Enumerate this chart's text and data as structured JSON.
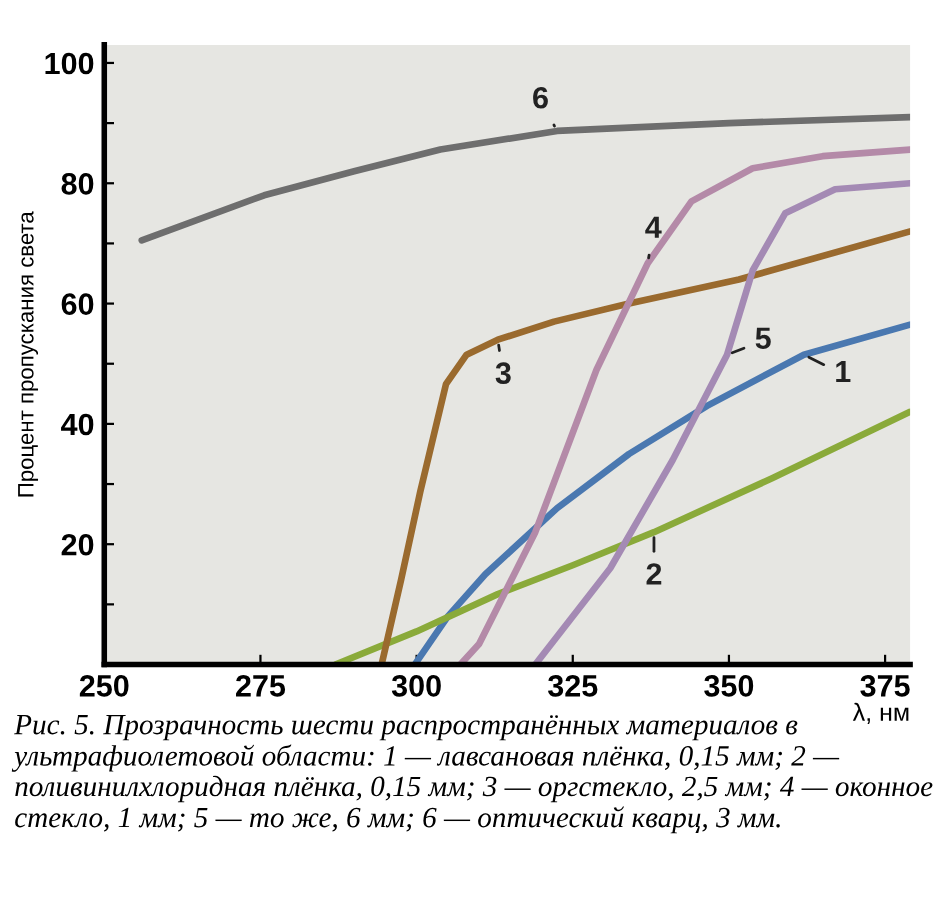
{
  "chart_data": {
    "type": "line",
    "xlabel": "λ, нм",
    "ylabel": "Процент пропускания света",
    "xlim": [
      250,
      379
    ],
    "xticks": [
      250,
      275,
      300,
      325,
      350,
      375
    ],
    "ylim": [
      0,
      103
    ],
    "yticks": [
      {
        "value": 10,
        "label": null
      },
      20,
      {
        "value": 30,
        "label": null
      },
      40,
      {
        "value": 50,
        "label": null
      },
      60,
      {
        "value": 70,
        "label": null
      },
      80,
      {
        "value": 90,
        "label": null
      },
      100
    ],
    "grid": false,
    "legend": false,
    "marker": "none",
    "line_style": "solid",
    "series": [
      {
        "name": "1",
        "color": "#4a78b0",
        "x": [
          299.7,
          305,
          311,
          322.5,
          334,
          346.5,
          362,
          379
        ],
        "values": [
          0,
          8,
          15,
          26,
          35,
          43,
          51.5,
          56.5
        ]
      },
      {
        "name": "2",
        "color": "#8aaa3a",
        "x": [
          287,
          300,
          313,
          325,
          338,
          357,
          379
        ],
        "values": [
          0,
          5.5,
          11.7,
          16.5,
          22,
          31,
          42
        ]
      },
      {
        "name": "3",
        "color": "#9a6a2e",
        "x": [
          294.4,
          297.5,
          300.6,
          304.7,
          308,
          313,
          322,
          334,
          351.6,
          379
        ],
        "values": [
          0,
          14,
          28.8,
          46.6,
          51.5,
          54,
          57,
          60,
          64,
          72
        ]
      },
      {
        "name": "4",
        "color": "#b48aa8",
        "x": [
          307,
          310,
          319,
          328.8,
          337,
          344,
          353.8,
          365,
          379
        ],
        "values": [
          0,
          3.4,
          22,
          49,
          66.7,
          77,
          82.5,
          84.5,
          85.6
        ]
      },
      {
        "name": "5",
        "color": "#a48ab4",
        "x": [
          319,
          331,
          341,
          349.7,
          353.8,
          359,
          367,
          379
        ],
        "values": [
          0,
          16,
          34,
          51.5,
          65.5,
          75,
          79,
          80
        ]
      },
      {
        "name": "6",
        "color": "#6e6e6e",
        "x": [
          256,
          275.6,
          290,
          303.8,
          322.5,
          350,
          379
        ],
        "values": [
          70.5,
          78,
          82,
          85.6,
          88.7,
          90,
          91
        ]
      }
    ],
    "annotations": [
      "Рис. 5. Прозрачность шести распространённых материалов в ультрафиолетовой области: 1 — лавсановая плёнка, 0,15 мм; 2 — поливинилхлоридная плёнка, 0,15 мм; 3 — оргстекло, 2,5 мм; 4 — оконное стекло, 1 мм; 5 — то же, 6 мм; 6 — оптический кварц, 3 мм."
    ]
  }
}
